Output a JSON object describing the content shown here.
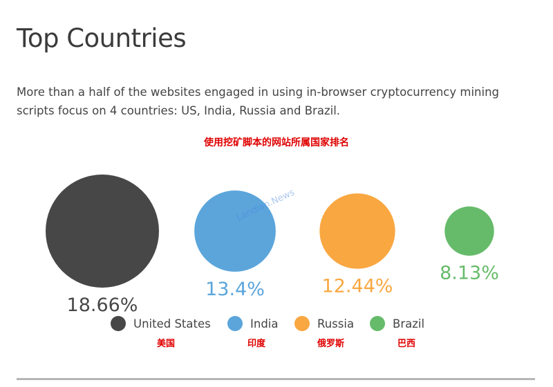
{
  "header": {
    "title": "Top Countries",
    "subtitle": "More than a half of the websites engaged in using in-browser cryptocurrency mining scripts focus on 4 countries: US, India, Russia and Brazil.",
    "cn_title": "使用挖矿脚本的网站所属国家排名"
  },
  "watermark": "Landian.News",
  "colors": {
    "united_states": "#474747",
    "india": "#5ba5db",
    "russia": "#f9a741",
    "brazil": "#66bb6a",
    "annotation": "#e00000"
  },
  "chart_data": {
    "type": "bubble",
    "unit": "%",
    "categories": [
      "United States",
      "India",
      "Russia",
      "Brazil"
    ],
    "values": [
      18.66,
      13.4,
      12.44,
      8.13
    ],
    "value_labels": [
      "18.66%",
      "13.4%",
      "12.44%",
      "8.13%"
    ],
    "legend": [
      {
        "label": "United States",
        "cn": "美国",
        "color": "#474747"
      },
      {
        "label": "India",
        "cn": "印度",
        "color": "#5ba5db"
      },
      {
        "label": "Russia",
        "cn": "俄罗斯",
        "color": "#f9a741"
      },
      {
        "label": "Brazil",
        "cn": "巴西",
        "color": "#66bb6a"
      }
    ]
  }
}
